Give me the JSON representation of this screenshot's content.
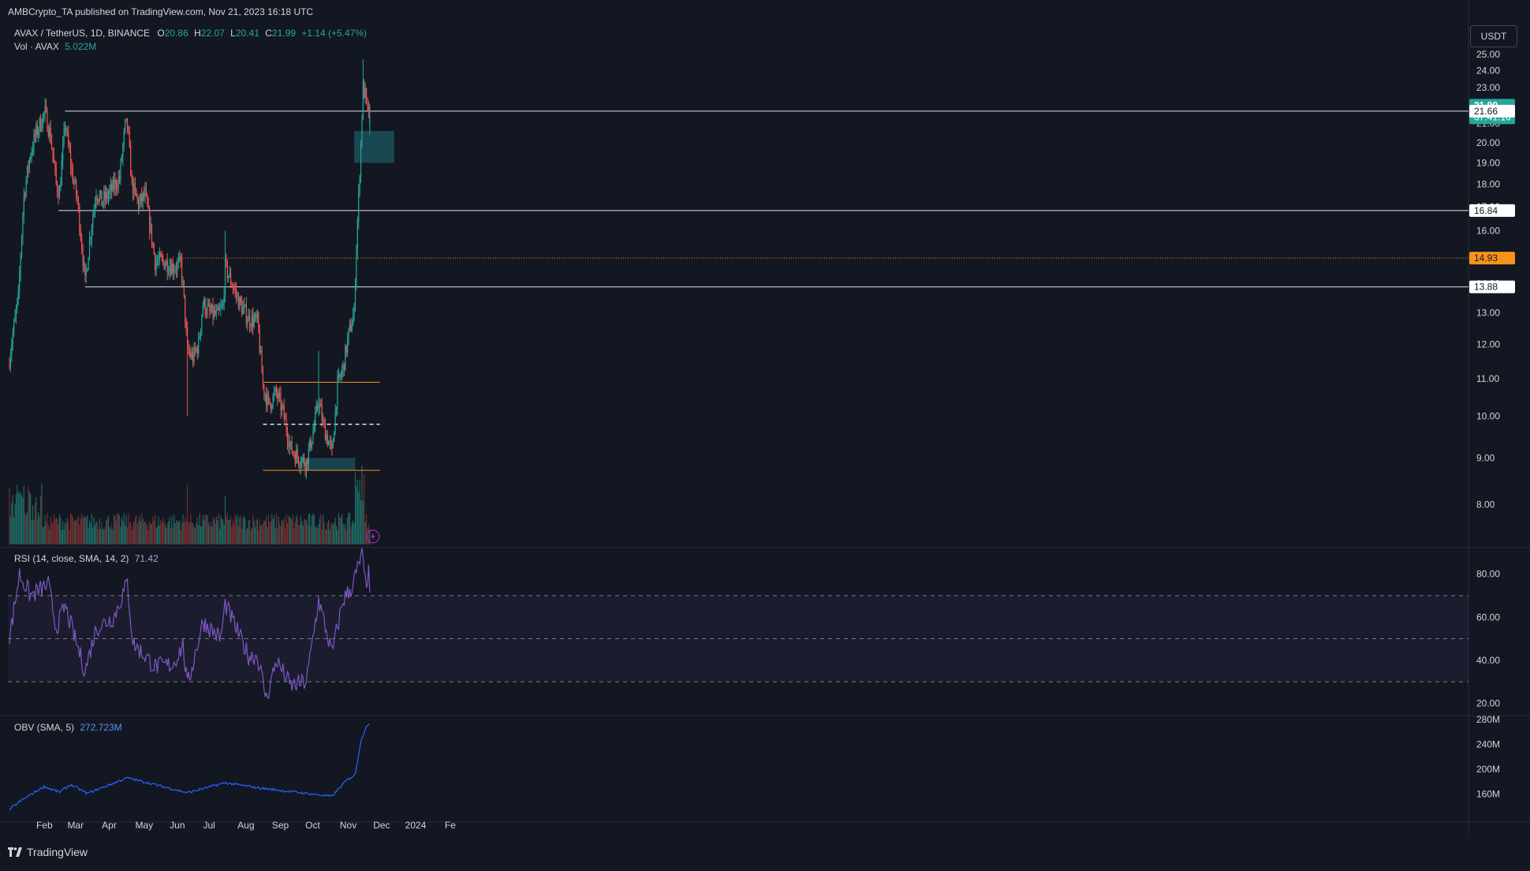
{
  "header": {
    "published": "AMBCrypto_TA published on TradingView.com, Nov 21, 2023 16:18 UTC",
    "symbol": "AVAX / TetherUS, 1D, BINANCE",
    "open_label": "O",
    "open": "20.86",
    "high_label": "H",
    "high": "22.07",
    "low_label": "L",
    "low": "20.41",
    "close_label": "C",
    "close": "21.99",
    "change": "+1.14 (+5.47%)",
    "vol_label": "Vol · AVAX",
    "vol_value": "5.022M"
  },
  "currency_button": "USDT",
  "footer": {
    "brand": "TradingView"
  },
  "colors": {
    "up": "#26a69a",
    "down": "#ef5350",
    "bg": "#131722",
    "rsi_line": "#7e57c2",
    "obv_line": "#2962ff",
    "orange": "#f7931a"
  },
  "chart_data": [
    {
      "type": "candlestick",
      "panel": "price",
      "title": "AVAX / TetherUS, 1D, BINANCE",
      "ylim": [
        7.2,
        26.5
      ],
      "y_scale": "log",
      "y_ticks": [
        "25.00",
        "24.00",
        "23.00",
        "22.00",
        "21.00",
        "20.00",
        "19.00",
        "18.00",
        "17.00",
        "16.00",
        "15.00",
        "14.00",
        "13.00",
        "12.00",
        "11.00",
        "10.00",
        "9.00",
        "8.00"
      ],
      "x_ticks": [
        "Feb",
        "Mar",
        "Apr",
        "May",
        "Jun",
        "Jul",
        "Aug",
        "Sep",
        "Oct",
        "Nov",
        "Dec",
        "2024",
        "Fe"
      ],
      "price_labels": [
        {
          "value": 21.99,
          "text": "21.99",
          "sub": "07:41:16",
          "kind": "last"
        },
        {
          "value": 21.66,
          "text": "21.66",
          "kind": "level"
        },
        {
          "value": 16.84,
          "text": "16.84",
          "kind": "level"
        },
        {
          "value": 14.93,
          "text": "14.93",
          "kind": "orange"
        },
        {
          "value": 13.88,
          "text": "13.88",
          "kind": "level"
        }
      ],
      "horizontal_levels": [
        {
          "value": 21.66,
          "from": "2023-02-20",
          "style": "solid-white"
        },
        {
          "value": 16.84,
          "from": "2023-02-14",
          "style": "solid-white"
        },
        {
          "value": 13.88,
          "from": "2023-03-10",
          "style": "solid-white"
        },
        {
          "value": 14.93,
          "from": "2023-06-06",
          "style": "dotted-orange"
        },
        {
          "value": 10.9,
          "from": "2023-08-17",
          "to": "2023-11-30",
          "style": "solid-orange"
        },
        {
          "value": 9.8,
          "from": "2023-08-17",
          "to": "2023-11-30",
          "style": "dashed-white"
        },
        {
          "value": 8.72,
          "from": "2023-08-17",
          "to": "2023-11-30",
          "style": "solid-orange"
        }
      ],
      "zones": [
        {
          "from": "2023-11-07",
          "to": "2023-12-13",
          "low": 19.0,
          "high": 20.6,
          "color": "teal"
        },
        {
          "from": "2023-09-22",
          "to": "2023-11-08",
          "low": 8.72,
          "high": 9.0,
          "color": "teal"
        }
      ],
      "anchors": [
        {
          "date": "2023-01-01",
          "close": 11.6
        },
        {
          "date": "2023-01-09",
          "close": 13.5
        },
        {
          "date": "2023-01-14",
          "close": 17.5
        },
        {
          "date": "2023-01-20",
          "close": 19.5
        },
        {
          "date": "2023-01-25",
          "close": 20.5
        },
        {
          "date": "2023-01-30",
          "close": 21.2
        },
        {
          "date": "2023-02-02",
          "close": 21.6
        },
        {
          "date": "2023-02-07",
          "close": 20.3
        },
        {
          "date": "2023-02-12",
          "close": 18.0
        },
        {
          "date": "2023-02-15",
          "close": 17.6
        },
        {
          "date": "2023-02-20",
          "close": 21.0
        },
        {
          "date": "2023-02-26",
          "close": 18.6
        },
        {
          "date": "2023-03-03",
          "close": 17.3
        },
        {
          "date": "2023-03-10",
          "close": 14.0
        },
        {
          "date": "2023-03-14",
          "close": 15.6
        },
        {
          "date": "2023-03-20",
          "close": 17.7
        },
        {
          "date": "2023-03-25",
          "close": 17.2
        },
        {
          "date": "2023-04-01",
          "close": 17.6
        },
        {
          "date": "2023-04-10",
          "close": 18.3
        },
        {
          "date": "2023-04-15",
          "close": 20.8
        },
        {
          "date": "2023-04-17",
          "close": 20.9
        },
        {
          "date": "2023-04-21",
          "close": 18.0
        },
        {
          "date": "2023-04-27",
          "close": 17.1
        },
        {
          "date": "2023-05-03",
          "close": 17.5
        },
        {
          "date": "2023-05-08",
          "close": 16.0
        },
        {
          "date": "2023-05-12",
          "close": 14.8
        },
        {
          "date": "2023-05-20",
          "close": 14.8
        },
        {
          "date": "2023-05-28",
          "close": 14.6
        },
        {
          "date": "2023-06-04",
          "close": 14.7
        },
        {
          "date": "2023-06-06",
          "close": 13.9
        },
        {
          "date": "2023-06-10",
          "close": 11.8
        },
        {
          "date": "2023-06-15",
          "close": 11.6
        },
        {
          "date": "2023-06-20",
          "close": 12.0
        },
        {
          "date": "2023-06-24",
          "close": 13.3
        },
        {
          "date": "2023-06-30",
          "close": 13.0
        },
        {
          "date": "2023-07-07",
          "close": 12.9
        },
        {
          "date": "2023-07-12",
          "close": 13.2
        },
        {
          "date": "2023-07-14",
          "close": 14.6
        },
        {
          "date": "2023-07-20",
          "close": 14.0
        },
        {
          "date": "2023-07-27",
          "close": 13.3
        },
        {
          "date": "2023-08-04",
          "close": 12.8
        },
        {
          "date": "2023-08-12",
          "close": 12.7
        },
        {
          "date": "2023-08-17",
          "close": 10.8
        },
        {
          "date": "2023-08-22",
          "close": 10.3
        },
        {
          "date": "2023-08-29",
          "close": 10.6
        },
        {
          "date": "2023-09-04",
          "close": 10.1
        },
        {
          "date": "2023-09-11",
          "close": 9.2
        },
        {
          "date": "2023-09-18",
          "close": 9.0
        },
        {
          "date": "2023-09-25",
          "close": 8.9
        },
        {
          "date": "2023-10-01",
          "close": 9.6
        },
        {
          "date": "2023-10-06",
          "close": 10.4
        },
        {
          "date": "2023-10-10",
          "close": 9.8
        },
        {
          "date": "2023-10-18",
          "close": 9.1
        },
        {
          "date": "2023-10-23",
          "close": 10.8
        },
        {
          "date": "2023-10-28",
          "close": 11.3
        },
        {
          "date": "2023-11-02",
          "close": 12.3
        },
        {
          "date": "2023-11-07",
          "close": 13.0
        },
        {
          "date": "2023-11-09",
          "close": 15.4
        },
        {
          "date": "2023-11-11",
          "close": 17.4
        },
        {
          "date": "2023-11-13",
          "close": 20.0
        },
        {
          "date": "2023-11-15",
          "close": 23.0
        },
        {
          "date": "2023-11-17",
          "close": 22.5
        },
        {
          "date": "2023-11-19",
          "close": 21.5
        },
        {
          "date": "2023-11-21",
          "close": 21.99
        }
      ],
      "extreme_points": [
        {
          "date": "2023-11-15",
          "high": 24.7
        },
        {
          "date": "2023-02-02",
          "high": 22.4
        },
        {
          "date": "2023-06-10",
          "low": 10.0
        },
        {
          "date": "2023-07-14",
          "high": 16.0
        },
        {
          "date": "2023-10-06",
          "high": 11.8
        }
      ]
    },
    {
      "type": "bar",
      "panel": "volume",
      "series": [
        {
          "name": "Vol · AVAX",
          "last": "5.022M"
        }
      ],
      "notes": "volume histogram colored by candle direction; spikes early Jan, Jun 10, Jul 14, Nov 9-14"
    },
    {
      "type": "line",
      "panel": "rsi",
      "title": "RSI (14, close, SMA, 14, 2)",
      "last_value": "71.42",
      "ylim": [
        15,
        92
      ],
      "y_ticks": [
        "80.00",
        "60.00",
        "40.00",
        "20.00"
      ],
      "band": [
        30,
        70
      ],
      "midline": 50,
      "anchors": [
        {
          "date": "2023-01-01",
          "value": 50
        },
        {
          "date": "2023-01-10",
          "value": 80
        },
        {
          "date": "2023-01-20",
          "value": 70
        },
        {
          "date": "2023-02-05",
          "value": 75
        },
        {
          "date": "2023-02-12",
          "value": 55
        },
        {
          "date": "2023-02-20",
          "value": 65
        },
        {
          "date": "2023-03-10",
          "value": 35
        },
        {
          "date": "2023-03-20",
          "value": 55
        },
        {
          "date": "2023-04-05",
          "value": 60
        },
        {
          "date": "2023-04-17",
          "value": 76
        },
        {
          "date": "2023-04-22",
          "value": 48
        },
        {
          "date": "2023-05-12",
          "value": 37
        },
        {
          "date": "2023-05-28",
          "value": 38
        },
        {
          "date": "2023-06-06",
          "value": 47
        },
        {
          "date": "2023-06-10",
          "value": 28
        },
        {
          "date": "2023-06-24",
          "value": 58
        },
        {
          "date": "2023-07-10",
          "value": 50
        },
        {
          "date": "2023-07-14",
          "value": 66
        },
        {
          "date": "2023-08-04",
          "value": 42
        },
        {
          "date": "2023-08-12",
          "value": 42
        },
        {
          "date": "2023-08-20",
          "value": 22
        },
        {
          "date": "2023-08-29",
          "value": 40
        },
        {
          "date": "2023-09-11",
          "value": 28
        },
        {
          "date": "2023-09-25",
          "value": 30
        },
        {
          "date": "2023-10-06",
          "value": 68
        },
        {
          "date": "2023-10-18",
          "value": 43
        },
        {
          "date": "2023-10-28",
          "value": 68
        },
        {
          "date": "2023-11-05",
          "value": 74
        },
        {
          "date": "2023-11-14",
          "value": 89
        },
        {
          "date": "2023-11-17",
          "value": 76
        },
        {
          "date": "2023-11-20",
          "value": 80
        },
        {
          "date": "2023-11-21",
          "value": 71.42
        }
      ]
    },
    {
      "type": "line",
      "panel": "obv",
      "title": "OBV (SMA, 5)",
      "last_value": "272.723M",
      "ylim": [
        130,
        285
      ],
      "y_ticks": [
        "280M",
        "240M",
        "200M",
        "160M"
      ],
      "anchors": [
        {
          "date": "2023-01-01",
          "value": 135
        },
        {
          "date": "2023-01-12",
          "value": 150
        },
        {
          "date": "2023-02-01",
          "value": 172
        },
        {
          "date": "2023-02-15",
          "value": 163
        },
        {
          "date": "2023-02-25",
          "value": 175
        },
        {
          "date": "2023-03-12",
          "value": 161
        },
        {
          "date": "2023-04-17",
          "value": 186
        },
        {
          "date": "2023-05-10",
          "value": 176
        },
        {
          "date": "2023-06-10",
          "value": 162
        },
        {
          "date": "2023-07-14",
          "value": 178
        },
        {
          "date": "2023-08-12",
          "value": 170
        },
        {
          "date": "2023-09-20",
          "value": 162
        },
        {
          "date": "2023-10-18",
          "value": 156
        },
        {
          "date": "2023-10-30",
          "value": 180
        },
        {
          "date": "2023-11-08",
          "value": 192
        },
        {
          "date": "2023-11-13",
          "value": 245
        },
        {
          "date": "2023-11-18",
          "value": 270
        },
        {
          "date": "2023-11-21",
          "value": 272.7
        }
      ]
    }
  ]
}
